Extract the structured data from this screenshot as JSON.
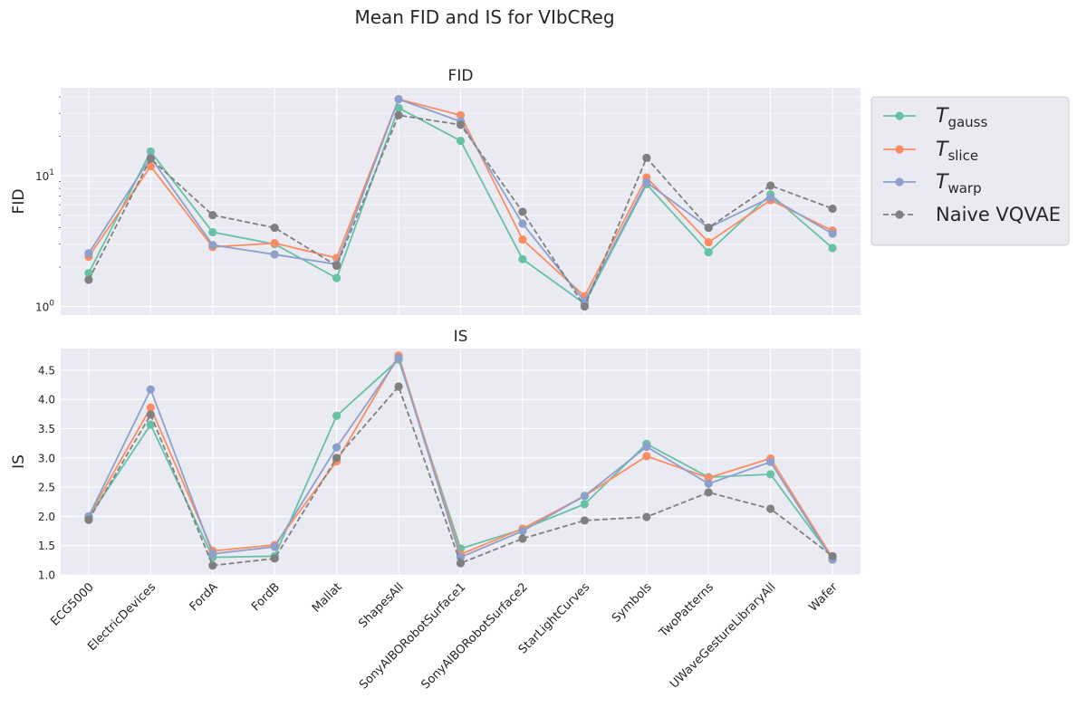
{
  "suptitle": "Mean FID and IS for VIbCReg",
  "chart_data": {
    "type": "line",
    "categories": [
      "ECG5000",
      "ElectricDevices",
      "FordA",
      "FordB",
      "Mallat",
      "ShapesAll",
      "SonyAIBORobotSurface1",
      "SonyAIBORobotSurface2",
      "StarLightCurves",
      "Symbols",
      "TwoPatterns",
      "UWaveGestureLibraryAll",
      "Wafer"
    ],
    "colors": {
      "gauss": "#66c2a5",
      "slice": "#fc8d62",
      "warp": "#8da0cb",
      "naive": "#808080"
    },
    "legend": {
      "placement": "outside-right",
      "entries": [
        {
          "key": "gauss",
          "symbol": "T",
          "sub": "gauss",
          "style": "solid"
        },
        {
          "key": "slice",
          "symbol": "T",
          "sub": "slice",
          "style": "solid"
        },
        {
          "key": "warp",
          "symbol": "T",
          "sub": "warp",
          "style": "solid"
        },
        {
          "key": "naive",
          "label": "Naive VQVAE",
          "style": "dashed"
        }
      ]
    },
    "panels": [
      {
        "id": "fid",
        "title": "FID",
        "ylabel": "FID",
        "yscale": "log",
        "ylim": [
          0.86,
          47
        ],
        "yticks": [
          {
            "base": "10",
            "exp": "0",
            "value": 1
          },
          {
            "base": "10",
            "exp": "1",
            "value": 10
          }
        ],
        "series": [
          {
            "key": "gauss",
            "values": [
              1.8,
              15.3,
              3.7,
              3.0,
              1.65,
              33,
              18.5,
              2.3,
              1.05,
              8.6,
              2.6,
              7.2,
              2.8
            ]
          },
          {
            "key": "slice",
            "values": [
              2.4,
              11.8,
              2.85,
              3.05,
              2.35,
              38.5,
              29,
              3.25,
              1.2,
              9.7,
              3.1,
              6.5,
              3.8
            ]
          },
          {
            "key": "warp",
            "values": [
              2.55,
              13.8,
              2.95,
              2.5,
              2.1,
              38.5,
              26,
              4.3,
              1.1,
              8.9,
              4.0,
              6.8,
              3.6
            ]
          },
          {
            "key": "naive",
            "values": [
              1.6,
              13.5,
              5.0,
              4.0,
              2.05,
              29,
              24.5,
              5.3,
              1.0,
              13.7,
              4.0,
              8.4,
              5.6
            ]
          }
        ]
      },
      {
        "id": "is",
        "title": "IS",
        "ylabel": "IS",
        "yscale": "linear",
        "ylim": [
          1.0,
          4.87
        ],
        "yticks": [
          {
            "label": "1.0",
            "value": 1.0
          },
          {
            "label": "1.5",
            "value": 1.5
          },
          {
            "label": "2.0",
            "value": 2.0
          },
          {
            "label": "2.5",
            "value": 2.5
          },
          {
            "label": "3.0",
            "value": 3.0
          },
          {
            "label": "3.5",
            "value": 3.5
          },
          {
            "label": "4.0",
            "value": 4.0
          },
          {
            "label": "4.5",
            "value": 4.5
          }
        ],
        "series": [
          {
            "key": "gauss",
            "values": [
              1.98,
              3.57,
              1.3,
              1.32,
              3.72,
              4.68,
              1.45,
              1.78,
              2.21,
              3.24,
              2.67,
              2.72,
              1.28
            ]
          },
          {
            "key": "slice",
            "values": [
              2.0,
              3.86,
              1.41,
              1.51,
              2.94,
              4.75,
              1.35,
              1.79,
              2.35,
              3.03,
              2.66,
              2.99,
              1.29
            ]
          },
          {
            "key": "warp",
            "values": [
              2.0,
              4.17,
              1.36,
              1.48,
              3.18,
              4.71,
              1.3,
              1.75,
              2.35,
              3.19,
              2.56,
              2.93,
              1.26
            ]
          },
          {
            "key": "naive",
            "values": [
              1.94,
              3.74,
              1.16,
              1.28,
              3.0,
              4.22,
              1.2,
              1.62,
              1.93,
              1.99,
              2.41,
              2.13,
              1.32
            ]
          }
        ]
      }
    ]
  }
}
